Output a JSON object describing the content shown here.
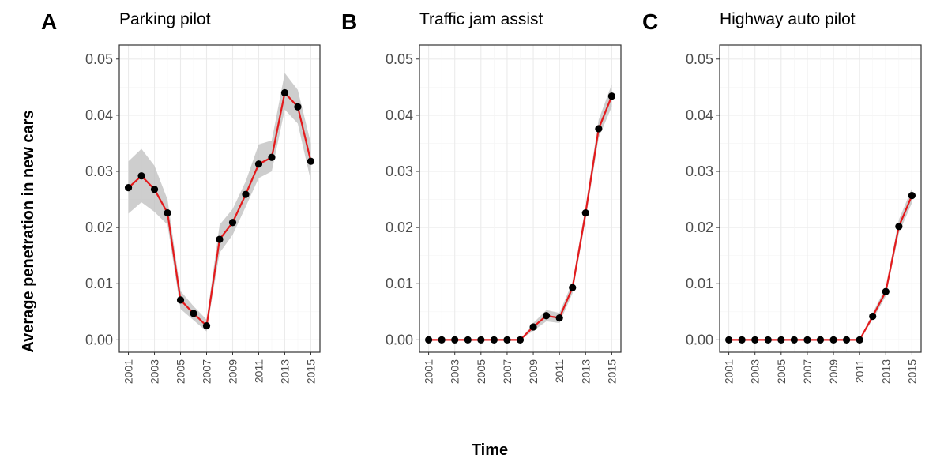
{
  "figure": {
    "ylabel": "Average penetration in new cars",
    "xlabel": "Time"
  },
  "colors": {
    "line": "#e41a1c",
    "ribbon": "#bdbdbd",
    "point": "#000000",
    "grid_major": "#ebebeb",
    "grid_minor": "#f5f5f5",
    "frame": "#333333"
  },
  "chart_data": [
    {
      "type": "line",
      "letter": "A",
      "title": "Parking pilot",
      "x": [
        2001,
        2002,
        2003,
        2004,
        2005,
        2006,
        2007,
        2008,
        2009,
        2010,
        2011,
        2012,
        2013,
        2014,
        2015
      ],
      "y": [
        0.0271,
        0.0292,
        0.0268,
        0.0226,
        0.0071,
        0.0047,
        0.0025,
        0.0179,
        0.0209,
        0.0259,
        0.0313,
        0.0325,
        0.044,
        0.0415,
        0.0318
      ],
      "lower": [
        0.0225,
        0.0245,
        0.0228,
        0.0205,
        0.0055,
        0.0035,
        0.0015,
        0.0155,
        0.0187,
        0.0237,
        0.0288,
        0.03,
        0.041,
        0.0385,
        0.0283
      ],
      "upper": [
        0.0318,
        0.034,
        0.031,
        0.025,
        0.0087,
        0.006,
        0.0036,
        0.0205,
        0.0233,
        0.0282,
        0.0348,
        0.0355,
        0.0475,
        0.0445,
        0.035
      ],
      "xticks": [
        "2001",
        "2003",
        "2005",
        "2007",
        "2009",
        "2011",
        "2013",
        "2015"
      ],
      "yticks": [
        "0.00",
        "0.01",
        "0.02",
        "0.03",
        "0.04",
        "0.05"
      ],
      "xlim": [
        2000.3,
        2015.7
      ],
      "ylim": [
        -0.0022,
        0.0525
      ],
      "grid": true
    },
    {
      "type": "line",
      "letter": "B",
      "title": "Traffic jam assist",
      "x": [
        2001,
        2002,
        2003,
        2004,
        2005,
        2006,
        2007,
        2008,
        2009,
        2010,
        2011,
        2012,
        2013,
        2014,
        2015
      ],
      "y": [
        0,
        0,
        0,
        0,
        0,
        0,
        0,
        0,
        0.0023,
        0.0043,
        0.0039,
        0.0093,
        0.0226,
        0.0376,
        0.0434
      ],
      "lower": [
        0,
        0,
        0,
        0,
        0,
        0,
        0,
        0,
        0.0016,
        0.0033,
        0.003,
        0.0083,
        0.0214,
        0.036,
        0.0415
      ],
      "upper": [
        0,
        0,
        0,
        0,
        0,
        0,
        0,
        0,
        0.003,
        0.0053,
        0.0048,
        0.0103,
        0.0238,
        0.0392,
        0.0455
      ],
      "xticks": [
        "2001",
        "2003",
        "2005",
        "2007",
        "2009",
        "2011",
        "2013",
        "2015"
      ],
      "yticks": [
        "0.00",
        "0.01",
        "0.02",
        "0.03",
        "0.04",
        "0.05"
      ],
      "xlim": [
        2000.3,
        2015.7
      ],
      "ylim": [
        -0.0022,
        0.0525
      ],
      "grid": true
    },
    {
      "type": "line",
      "letter": "C",
      "title": "Highway auto pilot",
      "x": [
        2001,
        2002,
        2003,
        2004,
        2005,
        2006,
        2007,
        2008,
        2009,
        2010,
        2011,
        2012,
        2013,
        2014,
        2015
      ],
      "y": [
        0,
        0,
        0,
        0,
        0,
        0,
        0,
        0,
        0,
        0,
        0,
        0.0042,
        0.0086,
        0.0202,
        0.0257
      ],
      "lower": [
        0,
        0,
        0,
        0,
        0,
        0,
        0,
        0,
        0,
        0,
        0,
        0.0036,
        0.0078,
        0.019,
        0.0244
      ],
      "upper": [
        0,
        0,
        0,
        0,
        0,
        0,
        0,
        0,
        0,
        0,
        0,
        0.0048,
        0.0094,
        0.0214,
        0.027
      ],
      "xticks": [
        "2001",
        "2003",
        "2005",
        "2007",
        "2009",
        "2011",
        "2013",
        "2015"
      ],
      "yticks": [
        "0.00",
        "0.01",
        "0.02",
        "0.03",
        "0.04",
        "0.05"
      ],
      "xlim": [
        2000.3,
        2015.7
      ],
      "ylim": [
        -0.0022,
        0.0525
      ],
      "grid": true
    }
  ]
}
